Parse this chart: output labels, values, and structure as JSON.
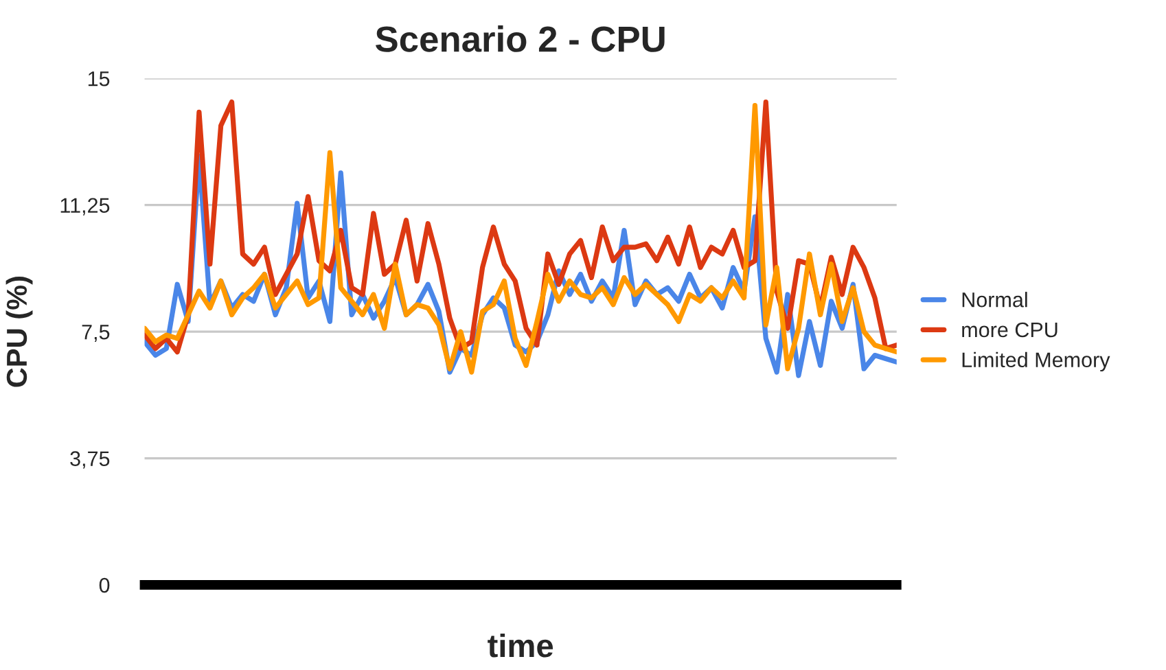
{
  "chart_data": {
    "type": "line",
    "title": "Scenario 2 - CPU",
    "xlabel": "time",
    "ylabel": "CPU (%)",
    "categories": [
      null,
      null,
      null,
      null,
      null,
      null,
      null,
      null,
      null,
      null,
      null,
      null,
      null,
      null,
      null,
      null,
      null,
      null,
      null,
      null,
      null,
      null,
      null,
      null,
      null,
      null,
      null,
      null,
      null,
      null,
      null,
      null,
      null,
      null,
      null,
      null,
      null,
      null,
      null,
      null,
      null,
      null,
      null,
      null,
      null,
      null,
      null,
      null,
      null,
      null,
      null,
      null,
      null,
      null,
      null,
      null,
      null,
      null,
      null,
      null,
      null,
      null,
      null,
      null,
      null,
      null,
      null,
      null,
      null,
      null
    ],
    "series": [
      {
        "name": "Normal",
        "color": "#4a86e8",
        "values": [
          7.2,
          6.8,
          7.0,
          8.9,
          7.8,
          12.7,
          8.3,
          9.0,
          8.2,
          8.6,
          8.4,
          9.2,
          8.0,
          8.8,
          11.3,
          8.5,
          9.0,
          7.8,
          12.2,
          8.0,
          8.6,
          7.9,
          8.4,
          9.1,
          8.0,
          8.3,
          8.9,
          8.1,
          6.3,
          7.0,
          6.8,
          8.0,
          8.5,
          8.2,
          7.1,
          6.9,
          7.2,
          8.0,
          9.3,
          8.6,
          9.2,
          8.4,
          9.0,
          8.5,
          10.5,
          8.3,
          9.0,
          8.6,
          8.8,
          8.4,
          9.2,
          8.5,
          8.8,
          8.2,
          9.4,
          8.7,
          10.9,
          7.3,
          6.3,
          8.6,
          6.2,
          7.8,
          6.5,
          8.4,
          7.6,
          8.9,
          6.4,
          6.8,
          6.7,
          6.6
        ]
      },
      {
        "name": "more CPU",
        "color": "#dc3912",
        "values": [
          7.4,
          7.0,
          7.3,
          6.9,
          8.0,
          14.0,
          9.5,
          13.6,
          14.3,
          9.8,
          9.5,
          10.0,
          8.6,
          9.2,
          9.8,
          11.5,
          9.6,
          9.3,
          10.5,
          8.8,
          8.6,
          11.0,
          9.2,
          9.5,
          10.8,
          9.0,
          10.7,
          9.5,
          7.9,
          7.0,
          7.2,
          9.4,
          10.6,
          9.5,
          9.0,
          7.6,
          7.1,
          9.8,
          8.9,
          9.8,
          10.2,
          9.1,
          10.6,
          9.6,
          10.0,
          10.0,
          10.1,
          9.6,
          10.3,
          9.5,
          10.6,
          9.4,
          10.0,
          9.8,
          10.5,
          9.4,
          9.6,
          14.3,
          8.7,
          7.6,
          9.6,
          9.5,
          8.2,
          9.7,
          8.6,
          10.0,
          9.4,
          8.5,
          7.0,
          7.1
        ]
      },
      {
        "name": "Limited Memory",
        "color": "#ff9900",
        "values": [
          7.6,
          7.2,
          7.4,
          7.3,
          8.0,
          8.7,
          8.2,
          9.0,
          8.0,
          8.5,
          8.8,
          9.2,
          8.2,
          8.6,
          9.0,
          8.3,
          8.5,
          12.8,
          8.8,
          8.4,
          8.0,
          8.6,
          7.6,
          9.5,
          8.0,
          8.3,
          8.2,
          7.7,
          6.4,
          7.5,
          6.3,
          8.1,
          8.3,
          9.0,
          7.3,
          6.5,
          7.8,
          9.2,
          8.4,
          9.0,
          8.6,
          8.5,
          8.8,
          8.3,
          9.1,
          8.6,
          8.9,
          8.6,
          8.3,
          7.8,
          8.6,
          8.4,
          8.8,
          8.5,
          9.0,
          8.5,
          14.2,
          7.7,
          9.4,
          6.4,
          7.6,
          9.8,
          8.0,
          9.5,
          7.8,
          8.8,
          7.5,
          7.1,
          7.0,
          6.9
        ]
      }
    ],
    "ylim": [
      0,
      15
    ],
    "yticks": [
      0,
      {
        "value": 3.75,
        "label": "3,75"
      },
      {
        "value": 7.5,
        "label": "7,5"
      },
      {
        "value": 11.25,
        "label": "11,25"
      },
      15
    ],
    "grid": "y",
    "legend": "right",
    "marker": "none",
    "line_style": "solid"
  }
}
